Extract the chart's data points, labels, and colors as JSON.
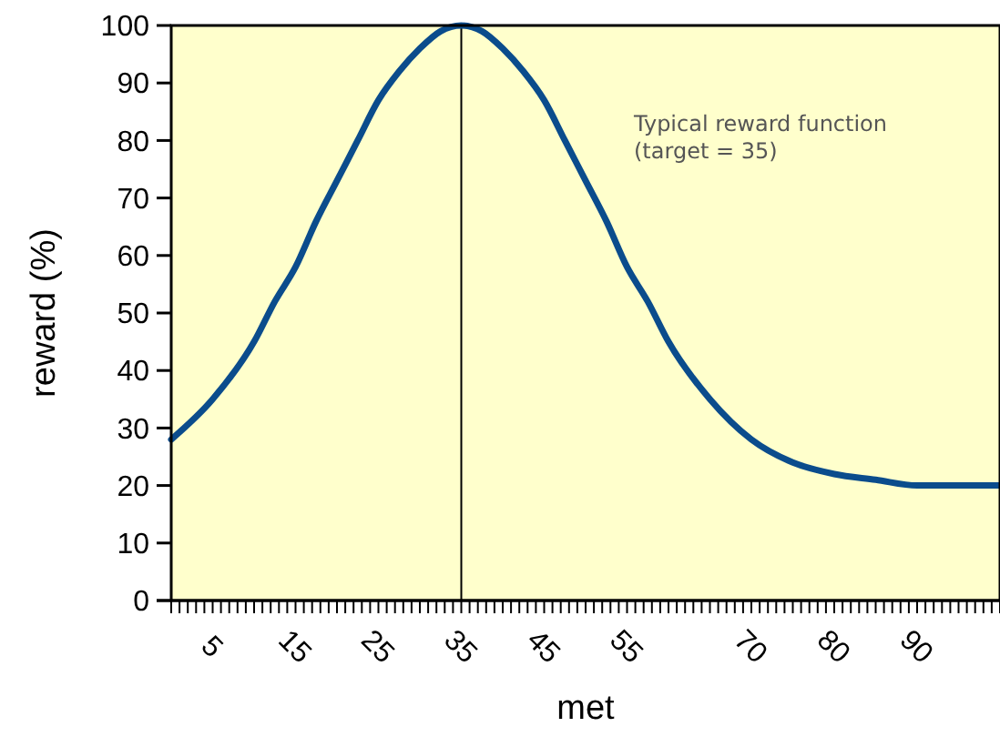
{
  "chart_data": {
    "type": "line",
    "xlabel": "met",
    "ylabel": "reward (%)",
    "annotations": [
      "Typical reward function\n(target = 35)"
    ],
    "xlim": [
      0,
      100
    ],
    "ylim": [
      0,
      100
    ],
    "yticks": [
      0,
      10,
      20,
      30,
      40,
      50,
      60,
      70,
      80,
      90,
      100
    ],
    "xticks": [
      {
        "value": 0,
        "label": null
      },
      {
        "value": 1,
        "label": null
      },
      {
        "value": 2,
        "label": null
      },
      {
        "value": 3,
        "label": null
      },
      {
        "value": 4,
        "label": null
      },
      5,
      {
        "value": 6,
        "label": null
      },
      {
        "value": 7,
        "label": null
      },
      {
        "value": 8,
        "label": null
      },
      {
        "value": 9,
        "label": null
      },
      {
        "value": 10,
        "label": null
      },
      {
        "value": 11,
        "label": null
      },
      {
        "value": 12,
        "label": null
      },
      {
        "value": 13,
        "label": null
      },
      {
        "value": 14,
        "label": null
      },
      15,
      {
        "value": 16,
        "label": null
      },
      {
        "value": 17,
        "label": null
      },
      {
        "value": 18,
        "label": null
      },
      {
        "value": 19,
        "label": null
      },
      {
        "value": 20,
        "label": null
      },
      {
        "value": 21,
        "label": null
      },
      {
        "value": 22,
        "label": null
      },
      {
        "value": 23,
        "label": null
      },
      {
        "value": 24,
        "label": null
      },
      25,
      {
        "value": 26,
        "label": null
      },
      {
        "value": 27,
        "label": null
      },
      {
        "value": 28,
        "label": null
      },
      {
        "value": 29,
        "label": null
      },
      {
        "value": 30,
        "label": null
      },
      {
        "value": 31,
        "label": null
      },
      {
        "value": 32,
        "label": null
      },
      {
        "value": 33,
        "label": null
      },
      {
        "value": 34,
        "label": null
      },
      35,
      {
        "value": 36,
        "label": null
      },
      {
        "value": 37,
        "label": null
      },
      {
        "value": 38,
        "label": null
      },
      {
        "value": 39,
        "label": null
      },
      {
        "value": 40,
        "label": null
      },
      {
        "value": 41,
        "label": null
      },
      {
        "value": 42,
        "label": null
      },
      {
        "value": 43,
        "label": null
      },
      {
        "value": 44,
        "label": null
      },
      45,
      {
        "value": 46,
        "label": null
      },
      {
        "value": 47,
        "label": null
      },
      {
        "value": 48,
        "label": null
      },
      {
        "value": 49,
        "label": null
      },
      {
        "value": 50,
        "label": null
      },
      {
        "value": 51,
        "label": null
      },
      {
        "value": 52,
        "label": null
      },
      {
        "value": 53,
        "label": null
      },
      {
        "value": 54,
        "label": null
      },
      55,
      {
        "value": 56,
        "label": null
      },
      {
        "value": 57,
        "label": null
      },
      {
        "value": 58,
        "label": null
      },
      {
        "value": 59,
        "label": null
      },
      {
        "value": 60,
        "label": null
      },
      {
        "value": 61,
        "label": null
      },
      {
        "value": 62,
        "label": null
      },
      {
        "value": 63,
        "label": null
      },
      {
        "value": 64,
        "label": null
      },
      {
        "value": 65,
        "label": null
      },
      {
        "value": 66,
        "label": null
      },
      {
        "value": 67,
        "label": null
      },
      {
        "value": 68,
        "label": null
      },
      {
        "value": 69,
        "label": null
      },
      70,
      {
        "value": 71,
        "label": null
      },
      {
        "value": 72,
        "label": null
      },
      {
        "value": 73,
        "label": null
      },
      {
        "value": 74,
        "label": null
      },
      {
        "value": 75,
        "label": null
      },
      {
        "value": 76,
        "label": null
      },
      {
        "value": 77,
        "label": null
      },
      {
        "value": 78,
        "label": null
      },
      {
        "value": 79,
        "label": null
      },
      80,
      {
        "value": 81,
        "label": null
      },
      {
        "value": 82,
        "label": null
      },
      {
        "value": 83,
        "label": null
      },
      {
        "value": 84,
        "label": null
      },
      {
        "value": 85,
        "label": null
      },
      {
        "value": 86,
        "label": null
      },
      {
        "value": 87,
        "label": null
      },
      {
        "value": 88,
        "label": null
      },
      {
        "value": 89,
        "label": null
      },
      90,
      {
        "value": 91,
        "label": null
      },
      {
        "value": 92,
        "label": null
      },
      {
        "value": 93,
        "label": null
      },
      {
        "value": 94,
        "label": null
      },
      {
        "value": 95,
        "label": null
      },
      {
        "value": 96,
        "label": null
      },
      {
        "value": 97,
        "label": null
      },
      {
        "value": 98,
        "label": null
      },
      {
        "value": 99,
        "label": null
      },
      {
        "value": 100,
        "label": null
      }
    ],
    "x": [
      0,
      5,
      10,
      12.5,
      15,
      17.5,
      20,
      22.5,
      25,
      27.5,
      30,
      32.5,
      35,
      37.5,
      40,
      42.5,
      45,
      47.5,
      50,
      52.5,
      55,
      57.5,
      60,
      65,
      70,
      75,
      80,
      85,
      90,
      95,
      100
    ],
    "series": [
      {
        "color": "#0b4c8c",
        "values": [
          28,
          35,
          45,
          52,
          58,
          66,
          73,
          80,
          87,
          92,
          96,
          99,
          100,
          99,
          96,
          92,
          87,
          80,
          73,
          66,
          58,
          52,
          45,
          35,
          28,
          24,
          22,
          21,
          20,
          20,
          20
        ]
      }
    ],
    "ref_lines": [
      {
        "axis": "x",
        "value": 35,
        "color": "#000000"
      }
    ],
    "grid": false,
    "marker": "none",
    "line_style": "solid"
  }
}
